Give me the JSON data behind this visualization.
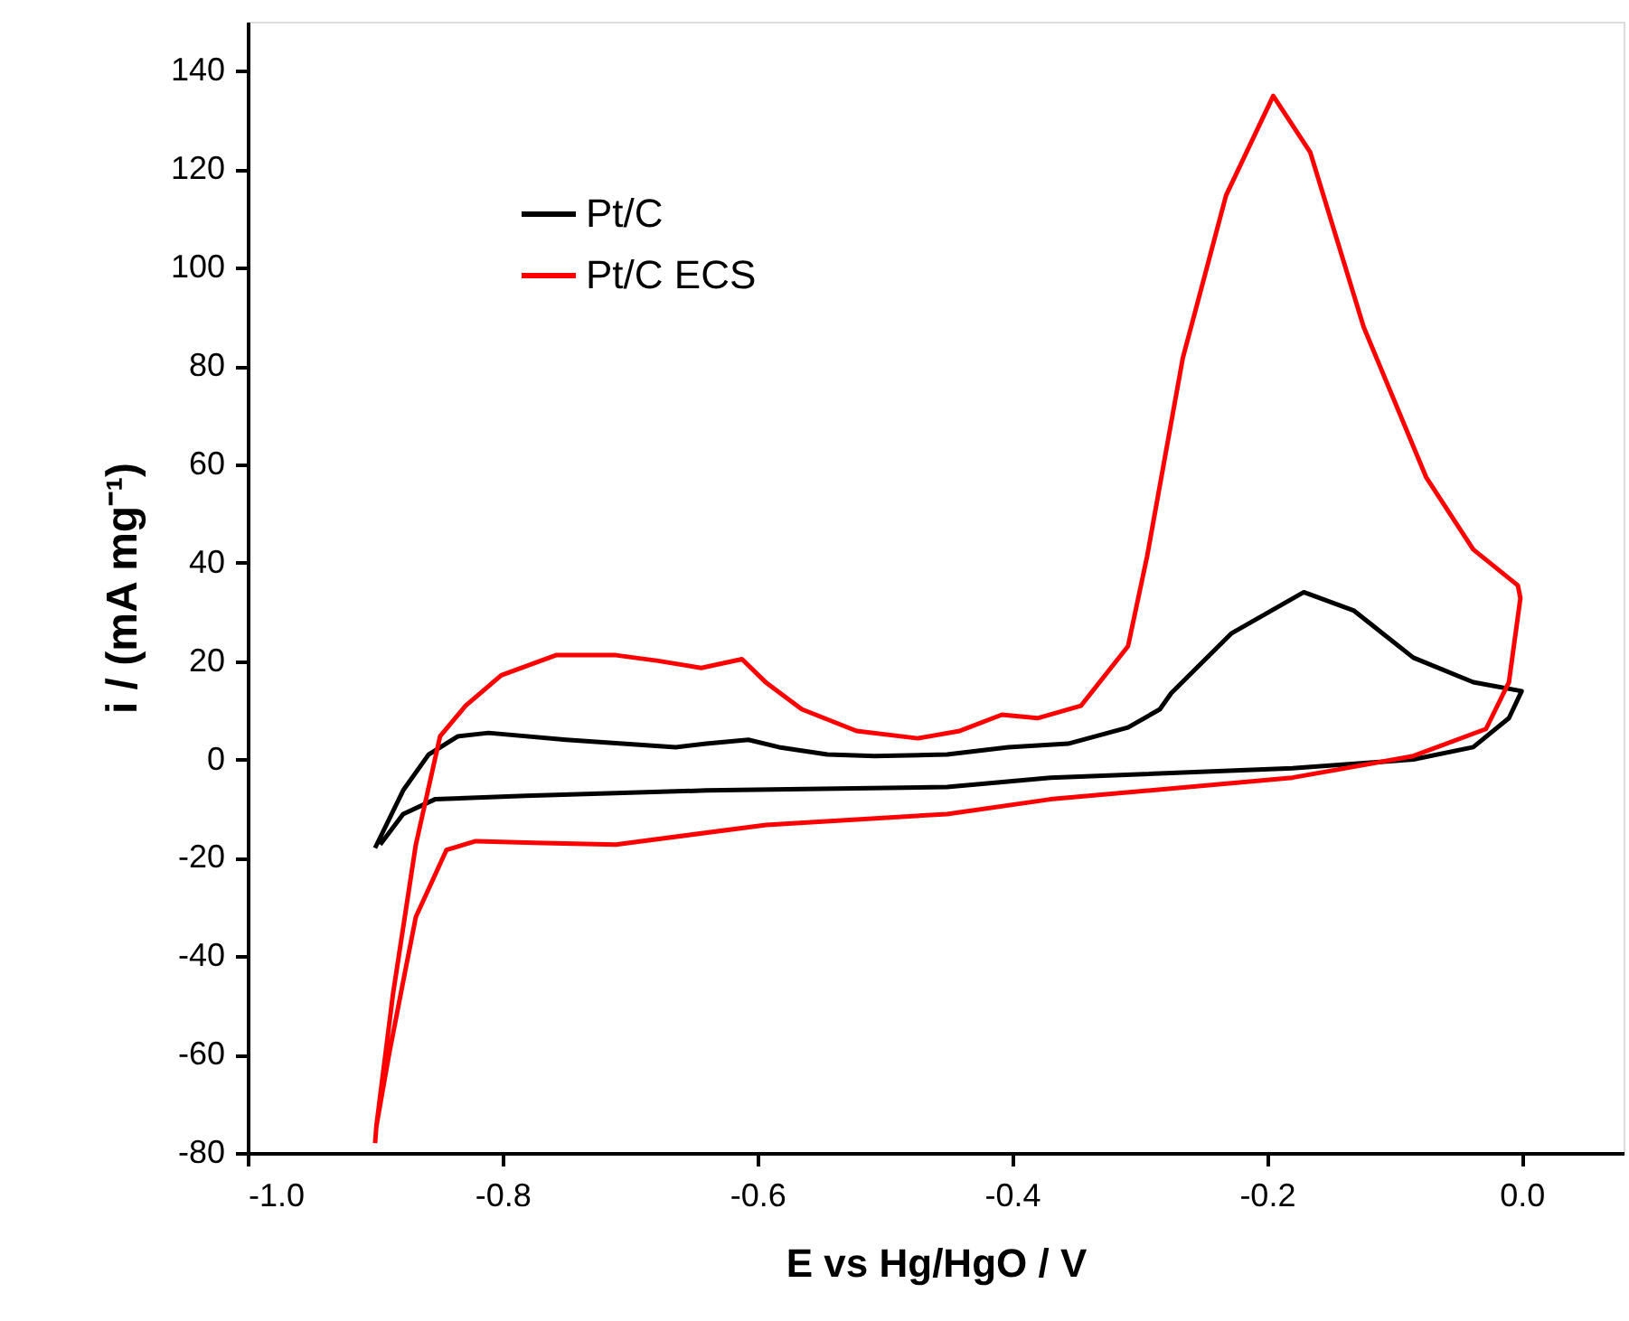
{
  "chart_data": {
    "type": "line",
    "xlabel": "E vs Hg/HgO / V",
    "ylabel": "i / (mA mg⁻¹)",
    "xlim": [
      -1.0,
      0.08
    ],
    "xticks": [
      {
        "value": -1.0,
        "label": "-1.0"
      },
      {
        "value": -0.8,
        "label": "-0.8"
      },
      {
        "value": -0.6,
        "label": "-0.6"
      },
      {
        "value": -0.4,
        "label": "-0.4"
      },
      {
        "value": -0.2,
        "label": "-0.2"
      },
      {
        "value": 0.0,
        "label": "0.0"
      }
    ],
    "ylim": [
      -80,
      150
    ],
    "yticks": [
      {
        "value": -80,
        "label": "-80"
      },
      {
        "value": -60,
        "label": "-60"
      },
      {
        "value": -40,
        "label": "-40"
      },
      {
        "value": -20,
        "label": "-20"
      },
      0,
      20,
      40,
      60,
      80,
      100,
      120,
      140
    ],
    "grid": false,
    "legend": "top left",
    "line_style": "solid",
    "marker": "none",
    "series": [
      {
        "name": "Pt/C",
        "color": "#000000",
        "x": [
          -0.9,
          -0.878,
          -0.858,
          -0.835,
          -0.811,
          -0.75,
          -0.664,
          -0.64,
          -0.607,
          -0.583,
          -0.545,
          -0.508,
          -0.451,
          -0.403,
          -0.356,
          -0.309,
          -0.284,
          -0.275,
          -0.228,
          -0.171,
          -0.132,
          -0.085,
          -0.038,
          0.0,
          -0.01,
          -0.038,
          -0.085,
          -0.18,
          -0.37,
          -0.451,
          -0.64,
          -0.782,
          -0.853,
          -0.878,
          -0.896
        ],
        "values": [
          -18,
          -6.3,
          1.0,
          4.7,
          5.4,
          4.0,
          2.5,
          3.2,
          4.0,
          2.5,
          1.0,
          0.7,
          1.0,
          2.5,
          3.2,
          6.5,
          10.2,
          13.5,
          25.6,
          34.0,
          30.3,
          20.7,
          15.7,
          13.9,
          8.4,
          2.5,
          0,
          -1.8,
          -3.7,
          -5.6,
          -6.3,
          -7.4,
          -8.1,
          -11.1,
          -17.3
        ]
      },
      {
        "name": "Pt/C ECS",
        "color": "#ff0000",
        "x": [
          -0.9,
          -0.899,
          -0.886,
          -0.868,
          -0.849,
          -0.829,
          -0.801,
          -0.758,
          -0.711,
          -0.679,
          -0.644,
          -0.612,
          -0.593,
          -0.565,
          -0.522,
          -0.474,
          -0.441,
          -0.408,
          -0.38,
          -0.346,
          -0.309,
          -0.294,
          -0.266,
          -0.232,
          -0.195,
          -0.166,
          -0.124,
          -0.075,
          -0.038,
          -0.003,
          -0.001,
          -0.01,
          -0.028,
          -0.085,
          -0.18,
          -0.37,
          -0.451,
          -0.593,
          -0.711,
          -0.768,
          -0.821,
          -0.844,
          -0.868,
          -0.878,
          -0.889,
          -0.899
        ],
        "values": [
          -78,
          -74.6,
          -47.8,
          -17.3,
          4.7,
          10.9,
          17.1,
          21.2,
          21.2,
          20.1,
          18.6,
          20.4,
          15.6,
          10.2,
          5.8,
          4.3,
          5.8,
          9.1,
          8.4,
          10.9,
          23.0,
          41.3,
          81.6,
          114.7,
          134.9,
          123.5,
          87.9,
          57.4,
          42.7,
          35.4,
          32.8,
          15.7,
          6.2,
          0.7,
          -3.7,
          -8.1,
          -11.1,
          -13.3,
          -17.3,
          -17.0,
          -16.6,
          -18.4,
          -32.0,
          -45.2,
          -59.9,
          -74.6
        ]
      }
    ]
  }
}
